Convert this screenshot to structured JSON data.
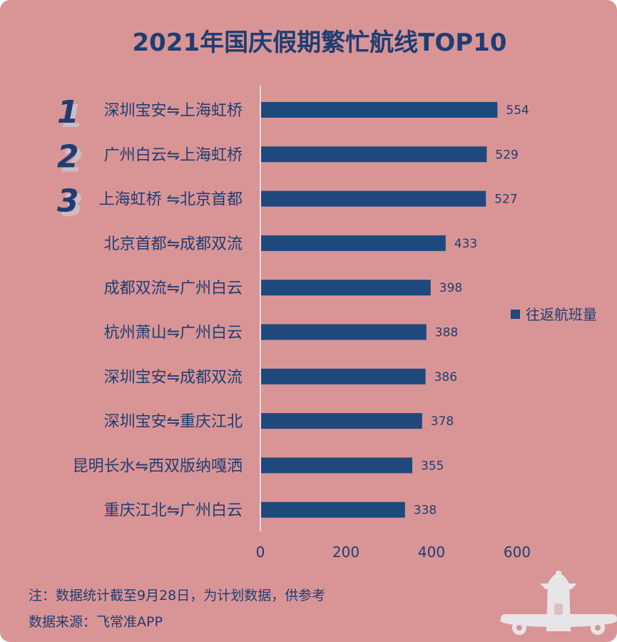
{
  "chart_data": {
    "type": "bar",
    "orientation": "horizontal",
    "title": "2021年国庆假期繁忙航线TOP10",
    "categories": [
      "深圳宝安⇋上海虹桥",
      "广州白云⇋上海虹桥",
      "上海虹桥 ⇋北京首都",
      "北京首都⇋成都双流",
      "成都双流⇋广州白云",
      "杭州萧山⇋广州白云",
      "深圳宝安⇋成都双流",
      "深圳宝安⇋重庆江北",
      "昆明长水⇋西双版纳嘎洒",
      "重庆江北⇋广州白云"
    ],
    "series": [
      {
        "name": "往返航班量",
        "values": [
          554,
          529,
          527,
          433,
          398,
          388,
          386,
          378,
          355,
          338
        ],
        "color": "#1f497d"
      }
    ],
    "xlim": [
      0,
      600
    ],
    "xticks": [
      "0",
      "200",
      "400",
      "600"
    ],
    "rank_labels": [
      "1",
      "2",
      "3"
    ],
    "legend_position": "right",
    "grid": false
  },
  "notes": {
    "line1": "注：数据统计截至9月28日，为计划数据，供参考",
    "line2": "数据来源：飞常准APP"
  },
  "colors": {
    "background": "#d99596",
    "text": "#1f3d73",
    "bar": "#1f497d"
  },
  "icons": {
    "plane": "airplane-icon"
  }
}
